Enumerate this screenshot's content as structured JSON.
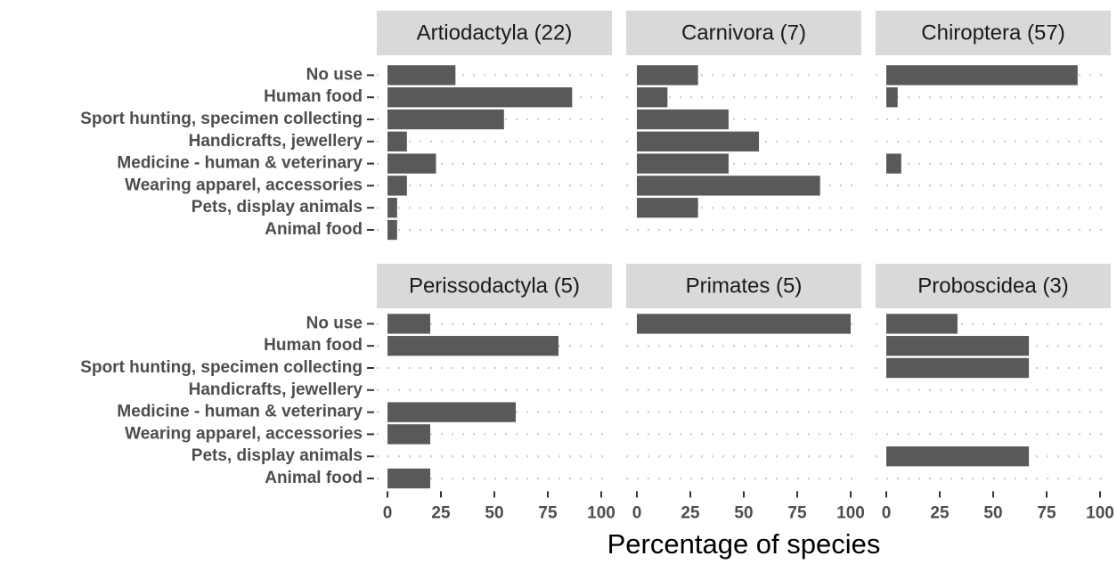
{
  "chart_data": {
    "type": "bar",
    "orientation": "horizontal",
    "color": "#595959",
    "xlabel": "Percentage of species",
    "categories": [
      "No use",
      "Human food",
      "Sport hunting, specimen collecting",
      "Handicrafts, jewellery",
      "Medicine - human & veterinary",
      "Wearing apparel, accessories",
      "Pets, display animals",
      "Animal food"
    ],
    "xlim": [
      -5,
      105
    ],
    "xticks": [
      0,
      25,
      50,
      75,
      100
    ],
    "grid": true,
    "facets": [
      {
        "title": "Artiodactyla (22)",
        "values": [
          31.8,
          86.4,
          54.5,
          9.1,
          22.7,
          9.1,
          4.5,
          4.5
        ]
      },
      {
        "title": "Carnivora (7)",
        "values": [
          28.6,
          14.3,
          42.9,
          57.1,
          42.9,
          85.7,
          28.6,
          0
        ]
      },
      {
        "title": "Chiroptera (57)",
        "values": [
          89.5,
          5.3,
          0,
          0,
          7.0,
          0,
          0,
          0
        ]
      },
      {
        "title": "Perissodactyla (5)",
        "values": [
          20,
          80,
          0,
          0,
          60,
          20,
          0,
          20
        ]
      },
      {
        "title": "Primates (5)",
        "values": [
          100,
          0,
          0,
          0,
          0,
          0,
          0,
          0
        ]
      },
      {
        "title": "Proboscidea (3)",
        "values": [
          33.3,
          66.7,
          66.7,
          0,
          0,
          0,
          66.7,
          0
        ]
      }
    ]
  }
}
